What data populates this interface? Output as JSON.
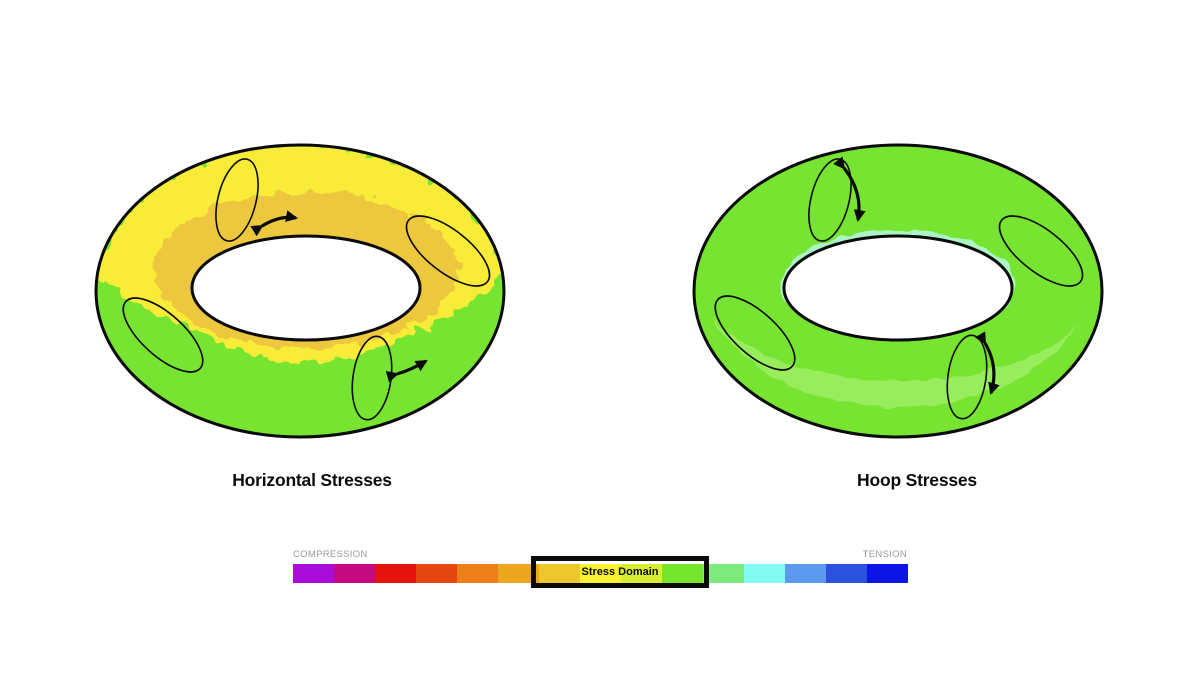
{
  "figures": [
    {
      "id": "horizontal",
      "title": "Horizontal Stresses"
    },
    {
      "id": "hoop",
      "title": "Hoop Stresses"
    }
  ],
  "colorbar": {
    "left_label": "COMPRESSION",
    "right_label": "TENSION",
    "domain_box_label": "Stress Domain",
    "segments": [
      "#A90ED8",
      "#C50A80",
      "#E5130E",
      "#E64710",
      "#EC7F19",
      "#ECA71E",
      "#EEC72F",
      "#F9F233",
      "#D8EF31",
      "#76E52E",
      "#7DEB7D",
      "#84FBF3",
      "#5B9AEF",
      "#2A52DC",
      "#0D15E6"
    ],
    "domain_box_segments": {
      "from": 7,
      "to": 10
    }
  },
  "colors": {
    "torus_yellow": "#F8EC38",
    "torus_gold": "#EDC73C",
    "torus_green": "#76E431",
    "torus_light_green": "#97ED5C",
    "torus_mint": "#ABF4C6",
    "hole_white": "#FFFFFF",
    "outline": "#0b0b0b",
    "label_gray": "#9A9A9A"
  }
}
